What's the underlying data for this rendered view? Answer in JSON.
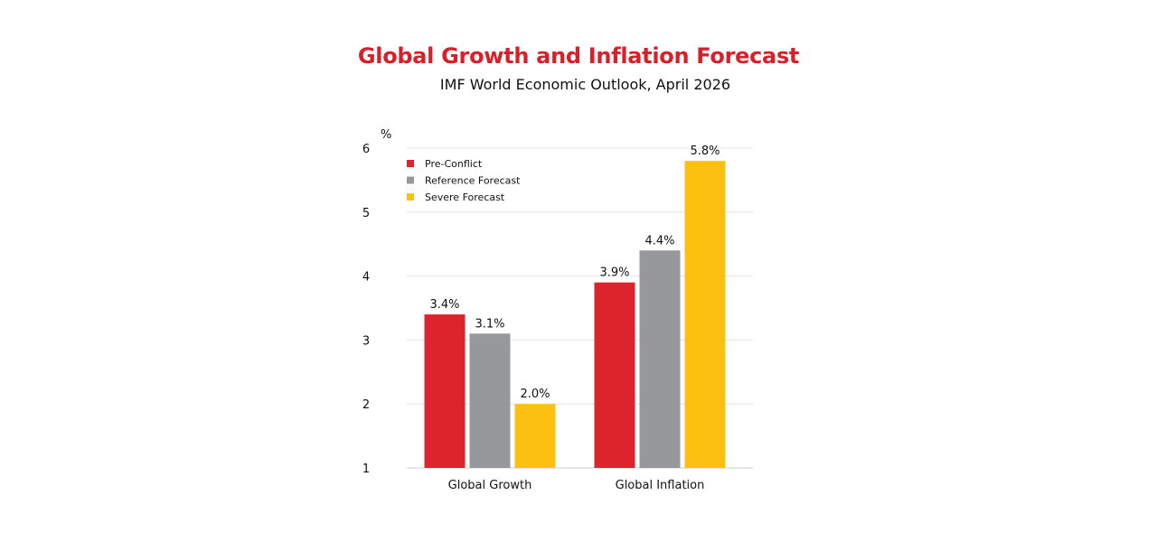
{
  "title": "Global Growth and Inflation Forecast",
  "subtitle": "IMF World Economic Outlook, April 2026",
  "chart_data": {
    "type": "bar",
    "title": "Global Growth and Inflation Forecast",
    "subtitle": "IMF World Economic Outlook, April 2026",
    "ylabel": "%",
    "xlabel": "",
    "ylim": [
      1,
      6
    ],
    "yticks": [
      1,
      2,
      3,
      4,
      5,
      6
    ],
    "grid": true,
    "legend_position": "top-left",
    "categories": [
      "Global Growth",
      "Global Inflation"
    ],
    "series": [
      {
        "name": "Pre-Conflict",
        "color": "#dd232b",
        "values": [
          3.4,
          3.9
        ],
        "labels": [
          "3.4%",
          "3.9%"
        ]
      },
      {
        "name": "Reference Forecast",
        "color": "#97989b",
        "values": [
          3.1,
          4.4
        ],
        "labels": [
          "3.1%",
          "4.4%"
        ]
      },
      {
        "name": "Severe Forecast",
        "color": "#fcc010",
        "values": [
          2.0,
          5.8
        ],
        "labels": [
          "2.0%",
          "5.8%"
        ]
      }
    ]
  }
}
